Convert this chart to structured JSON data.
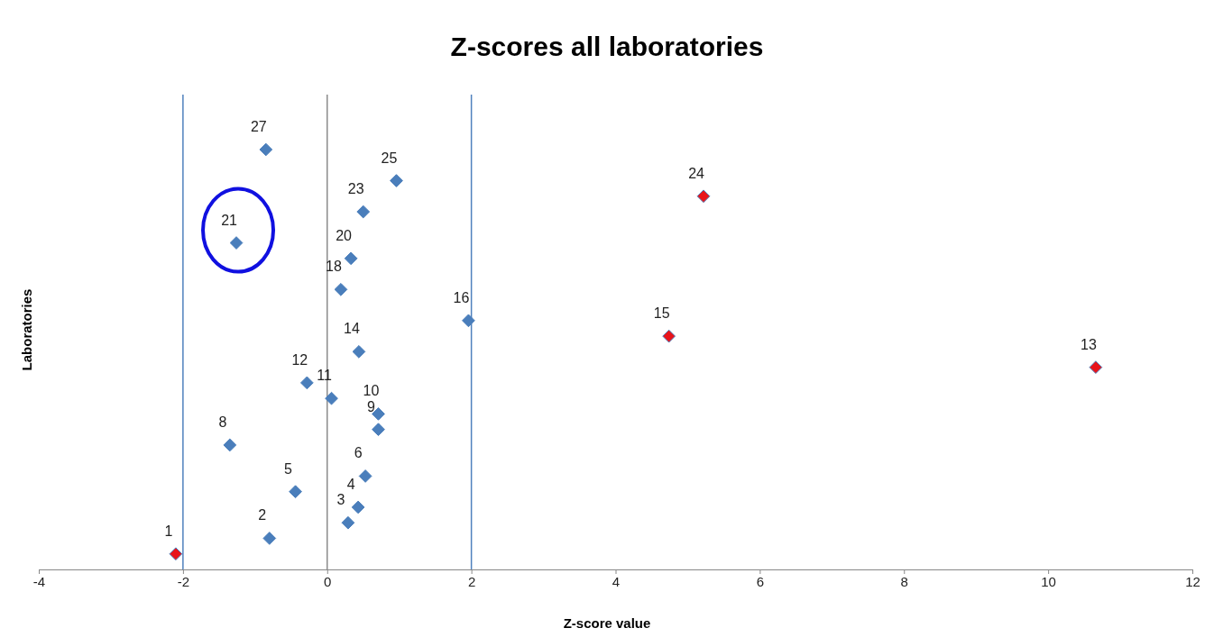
{
  "chart_data": {
    "type": "scatter",
    "title": "Z-scores all laboratories",
    "xlabel": "Z-score value",
    "ylabel": "Laboratories",
    "x": [
      -2.1,
      -0.8,
      0.29,
      0.43,
      -0.44,
      0.53,
      -1.35,
      0.71,
      0.71,
      0.06,
      -0.28,
      10.66,
      0.44,
      4.74,
      1.96,
      0.19,
      0.33,
      -1.26,
      0.5,
      5.22,
      0.96,
      -0.85
    ],
    "values": [
      1,
      2,
      3,
      4,
      5,
      6,
      8,
      9,
      10,
      11,
      12,
      13,
      14,
      15,
      16,
      18,
      20,
      21,
      23,
      24,
      25,
      27
    ],
    "colors": [
      "#e8141b",
      "#4a7ebb",
      "#4a7ebb",
      "#4a7ebb",
      "#4a7ebb",
      "#4a7ebb",
      "#4a7ebb",
      "#4a7ebb",
      "#4a7ebb",
      "#4a7ebb",
      "#4a7ebb",
      "#e8141b",
      "#4a7ebb",
      "#e8141b",
      "#4a7ebb",
      "#4a7ebb",
      "#4a7ebb",
      "#4a7ebb",
      "#4a7ebb",
      "#e8141b",
      "#4a7ebb",
      "#4a7ebb"
    ],
    "data_labels": true,
    "marker": "diamond",
    "tick_labels": "x",
    "xlim": [
      -4,
      12
    ],
    "xticks": [
      -4,
      -2,
      0,
      2,
      4,
      6,
      8,
      10,
      12
    ],
    "ref_lines": [
      {
        "axis": "x",
        "value": -2,
        "color": "#4f81bd"
      },
      {
        "axis": "x",
        "value": 0,
        "color": "#8c8c8c"
      },
      {
        "axis": "x",
        "value": 2,
        "color": "#4f81bd"
      }
    ]
  }
}
